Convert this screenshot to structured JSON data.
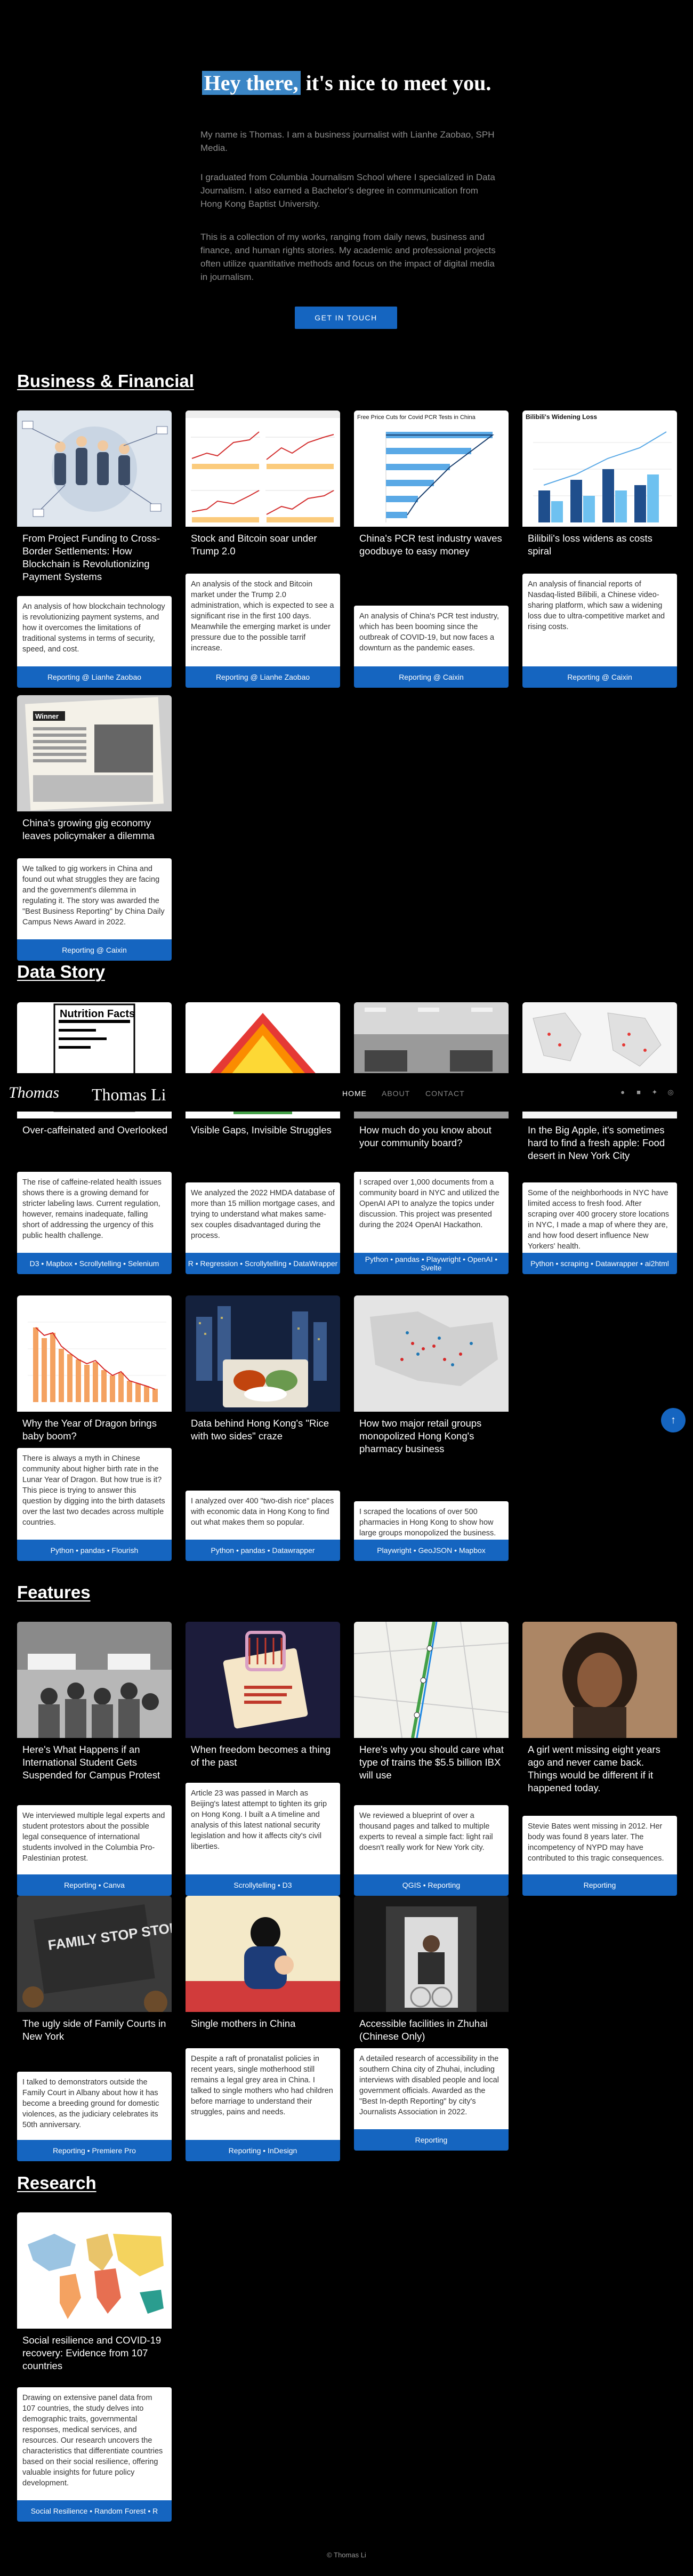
{
  "hero": {
    "title_highlight": "Hey there,",
    "title_rest": " it's nice to meet you.",
    "paragraphs": [
      "My name is Thomas. I am a business journalist with Lianhe Zaobao, SPH Media.",
      "I graduated from Columbia Journalism School where I specialized in Data Journalism. I also earned a Bachelor's degree in communication from Hong Kong Baptist University.",
      "This is a collection of my works, ranging from daily news, business and finance, and human rights stories. My academic and professional projects often utilize quantitative methods and focus on the impact of digital media in journalism."
    ],
    "cta": "GET IN TOUCH"
  },
  "sections": {
    "business": "Business & Financial",
    "data": "Data Story",
    "features": "Features",
    "research": "Research"
  },
  "business": [
    {
      "title": "From Project Funding to Cross-Border Settlements: How Blockchain is Revolutionizing Payment Systems",
      "desc": "An analysis of how blockchain technology is revolutionizing payment systems, and how it overcomes the limitations of traditional systems in terms of security, speed, and cost.",
      "foot": "Reporting @ Lianhe Zaobao"
    },
    {
      "title": "Stock and Bitcoin soar under Trump 2.0",
      "desc": "An analysis of the stock and Bitcoin market under the Trump 2.0 administration, which is expected to see a significant rise in the first 100 days. Meanwhile the emerging market is under pressure due to the possible tarrif increase.",
      "foot": "Reporting @ Lianhe Zaobao"
    },
    {
      "title": "China's PCR test industry waves goodbuye to easy money",
      "desc": "An analysis of China's PCR test industry, which has been booming since the outbreak of COVID-19, but now faces a downturn as the pandemic eases.",
      "foot": "Reporting @ Caixin"
    },
    {
      "title": "Bilibili's loss widens as costs spiral",
      "desc": "An analysis of financial reports of Nasdaq-listed Bilibili, a Chinese video-sharing platform, which saw a widening loss due to ultra-competitive market and rising costs.",
      "foot": "Reporting @ Caixin"
    },
    {
      "title": "China's growing gig economy leaves policymaker a dilemma",
      "desc": "We talked to gig workers in China and found out what struggles they are facing and the government's dilemma in regulating it. The story was awarded the \"Best Business Reporting\" by China Daily Campus News Award in 2022.",
      "foot": "Reporting @ Caixin"
    }
  ],
  "data_story": [
    {
      "title": "Over-caffeinated and Overlooked",
      "desc": "The rise of caffeine-related health issues shows there is a growing demand for stricter labeling laws. Current regulation, however, remains inadequate, falling short of addressing the urgency of this public health challenge.",
      "foot": "D3 • Mapbox • Scrollytelling • Selenium"
    },
    {
      "title": "Visible Gaps, Invisible Struggles",
      "desc": "We analyzed the 2022 HMDA database of more than 15 million mortgage cases, and trying to understand what makes same-sex couples disadvantaged during the process.",
      "foot": "R • Regression • Scrollytelling • DataWrapper"
    },
    {
      "title": "How much do you know about your community board?",
      "desc": "I scraped over 1,000 documents from a community board in NYC and utilized the OpenAI API to analyze the topics under discussion. This project was presented during the 2024 OpenAI Hackathon.",
      "foot": "Python • pandas • Playwright • OpenAI • Svelte"
    },
    {
      "title": "In the Big Apple, it's sometimes hard to find a fresh apple: Food desert in New York City",
      "desc": "Some of the neighborhoods in NYC have limited access to fresh food. After scraping over 400 grocery store locations in NYC, I made a map of where they are, and how food desert influence New Yorkers' health.",
      "foot": "Python • scraping • Datawrapper • ai2html"
    },
    {
      "title": "Why the Year of Dragon brings baby boom?",
      "desc": "There is always a myth in Chinese community about higher birth rate in the Lunar Year of Dragon. But how true is it? This piece is trying to answer this question by digging into the birth datasets over the last two decades across multiple countries.",
      "foot": "Python • pandas • Flourish"
    },
    {
      "title": "Data behind Hong Kong's \"Rice with two sides\" craze",
      "desc": "I analyzed over 400 \"two-dish rice\" places with economic data in Hong Kong to find out what makes them so popular.",
      "foot": "Python • pandas • Datawrapper"
    },
    {
      "title": "How two major retail groups monopolized Hong Kong's pharmacy business",
      "desc": "I scraped the locations of over 500 pharmacies in Hong Kong to show how large groups monopolized the business.",
      "foot": "Playwright • GeoJSON • Mapbox"
    }
  ],
  "features": [
    {
      "title": "Here's What Happens if an International Student Gets Suspended for Campus Protest",
      "desc": "We interviewed multiple legal experts and student protestors about the possible legal consequence of international students involved in the Columbia Pro-Palestinian protest.",
      "foot": "Reporting • Canva"
    },
    {
      "title": "When freedom becomes a thing of the past",
      "desc": "Article 23 was passed in March as Beijing's latest attempt to tighten its grip on Hong Kong. I built a A timeline and analysis of this latest national security legislation and how it affects city's civil liberties.",
      "foot": "Scrollytelling • D3"
    },
    {
      "title": "Here's why you should care what type of trains the $5.5 billion IBX will use",
      "desc": "We reviewed a blueprint of over a thousand pages and talked to multiple experts to reveal a simple fact: light rail doesn't really work for New York city.",
      "foot": "QGIS • Reporting"
    },
    {
      "title": "A girl went missing eight years ago and never came back. Things would be different if it happened today.",
      "desc": "Stevie Bates went missing in 2012. Her body was found 8 years later. The incompetency of NYPD may have contributed to this tragic consequences.",
      "foot": "Reporting"
    },
    {
      "title": "The ugly side of Family Courts in New York",
      "desc": "I talked to demonstrators outside the Family Court in Albany about how it has become a breeding ground for domestic violences, as the judiciary celebrates its 50th anniversary.",
      "foot": "Reporting • Premiere Pro"
    },
    {
      "title": "Single mothers in China",
      "desc": "Despite a raft of pronatalist policies in recent years, single motherhood still remains a legal grey area in China. I talked to single mothers who had children before marriage to understand their struggles, pains and needs.",
      "foot": "Reporting • InDesign"
    },
    {
      "title": "Accessible facilities in Zhuhai (Chinese Only)",
      "desc": "A detailed research of accessibility in the southern China city of Zhuhai, including interviews with disabled people and local government officials. Awarded as the \"Best In-depth Reporting\" by city's Journalists Association in 2022.",
      "foot": "Reporting"
    }
  ],
  "research": [
    {
      "title": "Social resilience and COVID-19 recovery: Evidence from 107 countries",
      "desc": "Drawing on extensive panel data from 107 countries, the study delves into demographic traits, governmental responses, medical services, and resources. Our research uncovers the characteristics that differentiate countries based on their social resilience, offering valuable insights for future policy development.",
      "foot": "Social Resilience • Random Forest • R"
    }
  ],
  "nav": {
    "script_logo": "Thomas",
    "name": "Thomas Li",
    "links": [
      "HOME",
      "ABOUT",
      "CONTACT"
    ]
  },
  "thumb_text": {
    "nutrition": "Nutrition Facts",
    "pcr_title": "Free Price Cuts for Covid PCR Tests in China",
    "bili_title": "Bilibili's Widening Loss",
    "newspaper": "Winner",
    "family_sign": "FAMILY STOP STOP"
  },
  "footer": "© Thomas Li",
  "colors": {
    "accent": "#1565c0",
    "background": "#000000"
  }
}
